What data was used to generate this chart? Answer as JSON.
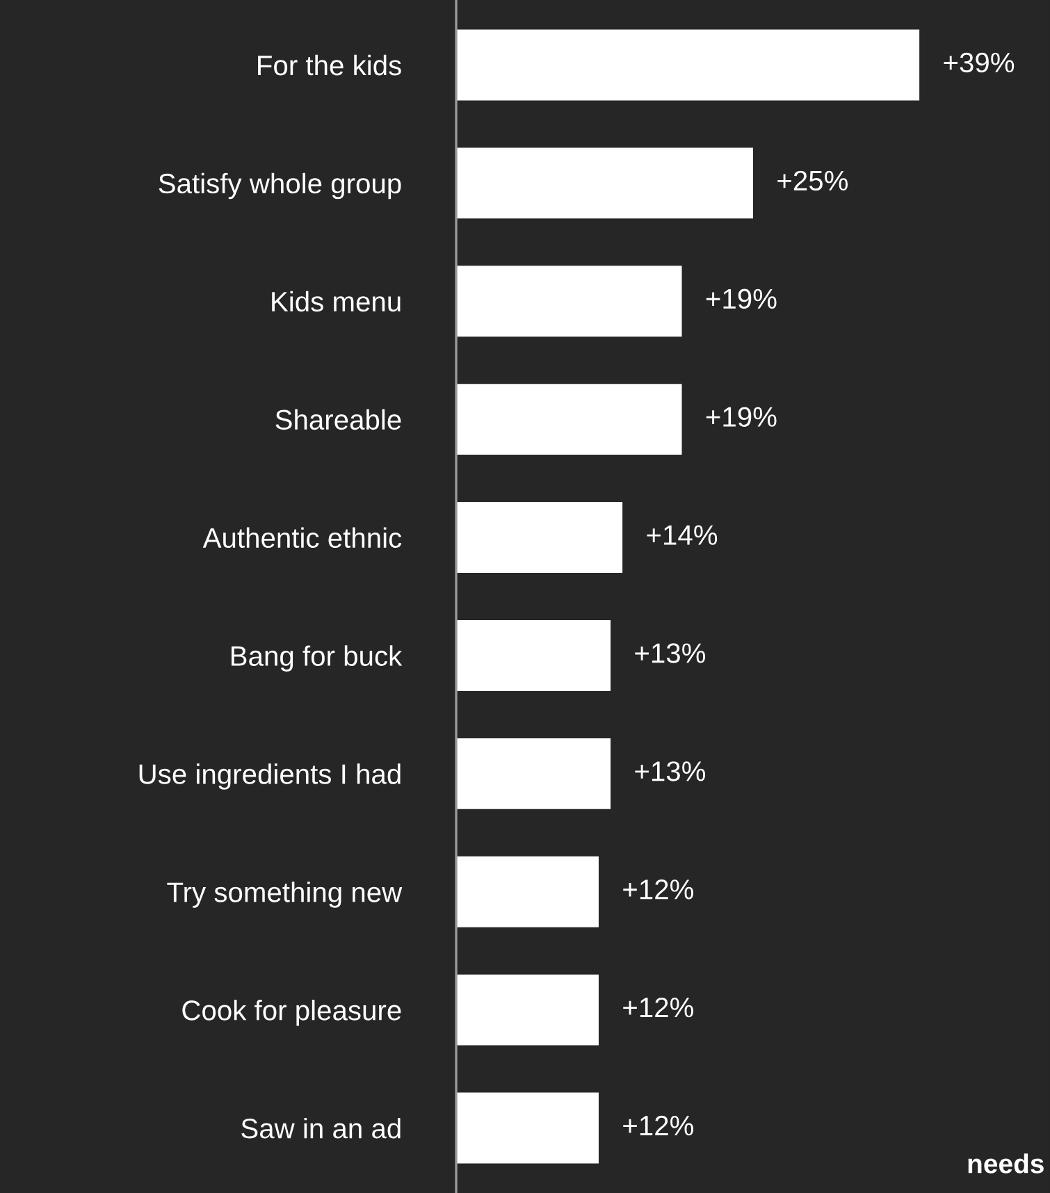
{
  "chart_data": {
    "type": "bar",
    "orientation": "horizontal",
    "categories": [
      "For the kids",
      "Satisfy whole group",
      "Kids menu",
      "Shareable",
      "Authentic ethnic",
      "Bang for buck",
      "Use ingredients I had",
      "Try something new",
      "Cook for pleasure",
      "Saw in an ad"
    ],
    "values": [
      39,
      25,
      19,
      19,
      14,
      13,
      13,
      12,
      12,
      12
    ],
    "value_labels": [
      "+39%",
      "+25%",
      "+19%",
      "+19%",
      "+14%",
      "+13%",
      "+13%",
      "+12%",
      "+12%",
      "+12%"
    ],
    "color": "#ffffff",
    "xlim": [
      0,
      50
    ],
    "tick_labels": "y",
    "grid": false,
    "legend": false,
    "annotations": [
      "needs"
    ]
  }
}
